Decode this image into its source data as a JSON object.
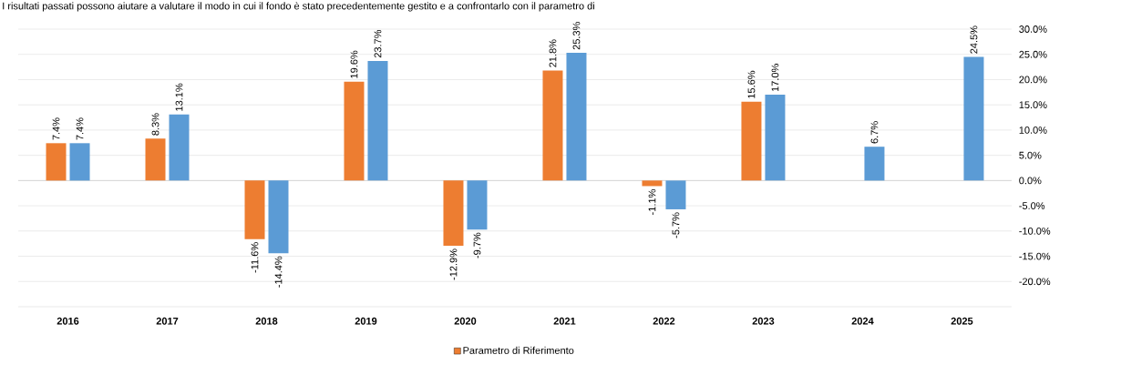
{
  "chart_data": {
    "type": "bar",
    "title": "I risultati passati possono aiutare a valutare il modo in cui il fondo è stato precedentemente gestito e a confrontarlo con il parametro di",
    "categories": [
      "2016",
      "2017",
      "2018",
      "2019",
      "2020",
      "2021",
      "2022",
      "2023",
      "2024",
      "2025"
    ],
    "series": [
      {
        "name": "Parametro di Riferimento",
        "color": "#ed7d31",
        "values": [
          7.4,
          8.3,
          -11.6,
          19.6,
          -12.9,
          21.8,
          -1.1,
          15.6,
          null,
          null
        ],
        "value_labels": [
          "7.4%",
          "8.3%",
          "-11.6%",
          "19.6%",
          "-12.9%",
          "21.8%",
          "-1.1%",
          "15.6%",
          null,
          null
        ]
      },
      {
        "color": "#5b9bd5",
        "values": [
          7.4,
          13.1,
          -14.4,
          23.7,
          -9.7,
          25.3,
          -5.7,
          17.0,
          6.7,
          24.5
        ],
        "value_labels": [
          "7.4%",
          "13.1%",
          "-14.4%",
          "23.7%",
          "-9.7%",
          "25.3%",
          "-5.7%",
          "17.0%",
          "6.7%",
          "24.5%"
        ]
      }
    ],
    "ylim": [
      -25,
      30
    ],
    "yticks": [
      {
        "value": -20,
        "label": "-20.0%"
      },
      {
        "value": -15,
        "label": "-15.0%"
      },
      {
        "value": -10,
        "label": "-10.0%"
      },
      {
        "value": -5,
        "label": "-5.0%"
      },
      {
        "value": 0,
        "label": "0.0%"
      },
      {
        "value": 5,
        "label": "5.0%"
      },
      {
        "value": 10,
        "label": "10.0%"
      },
      {
        "value": 15,
        "label": "15.0%"
      },
      {
        "value": 20,
        "label": "20.0%"
      },
      {
        "value": 25,
        "label": "25.0%"
      },
      {
        "value": 30,
        "label": "30.0%"
      }
    ],
    "grid": "y",
    "legend": "bottom"
  }
}
